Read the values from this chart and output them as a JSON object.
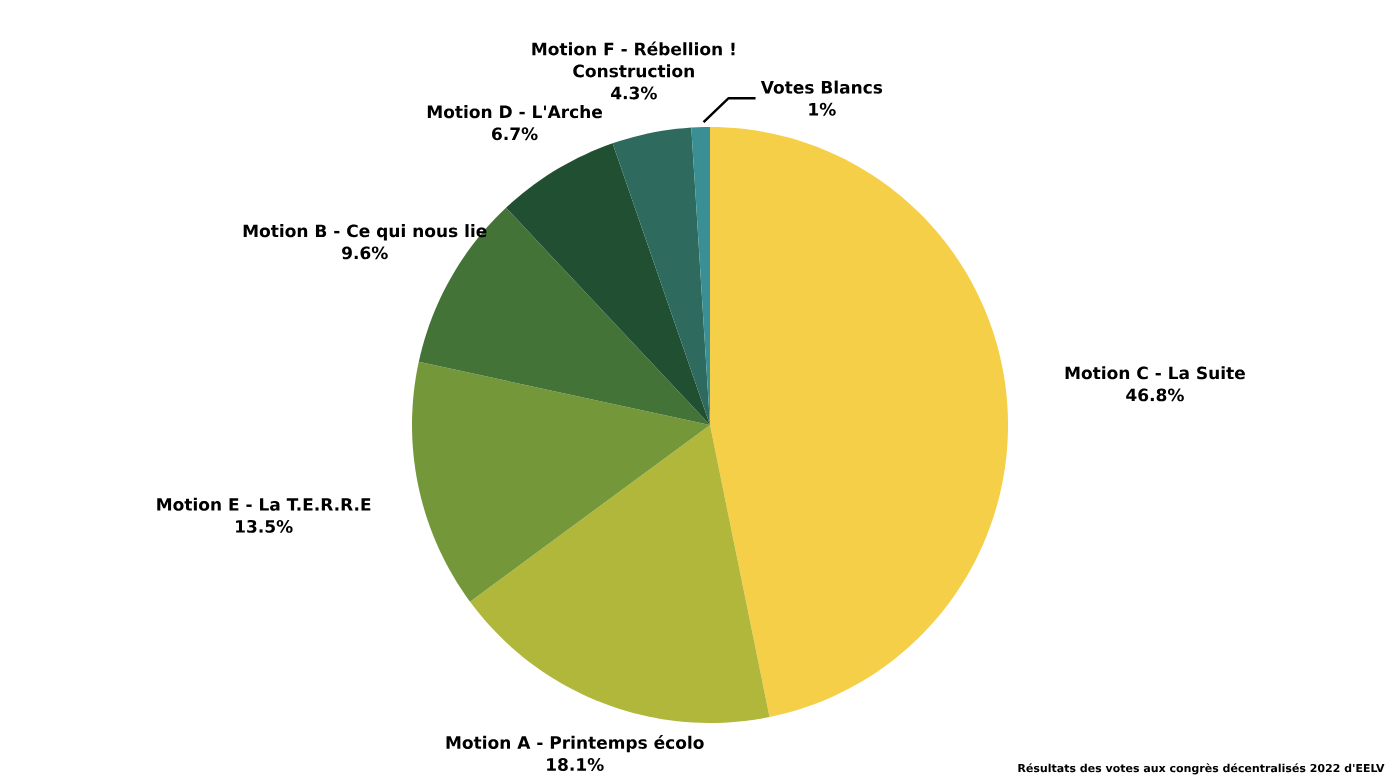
{
  "chart_data": {
    "type": "pie",
    "categories": [
      "Motion C - La Suite",
      "Motion A - Printemps écolo",
      "Motion E - La T.E.R.R.E",
      "Motion B - Ce qui nous lie",
      "Motion D - L'Arche",
      "Motion F - Rébellion ! Construction",
      "Votes Blancs"
    ],
    "values": [
      46.8,
      18.1,
      13.5,
      9.6,
      6.7,
      4.3,
      1
    ],
    "value_labels": [
      "46.8%",
      "18.1%",
      "13.5%",
      "9.6%",
      "6.7%",
      "4.3%",
      "1%"
    ],
    "colors": [
      "#f5cf47",
      "#b0b73b",
      "#739739",
      "#437337",
      "#214f31",
      "#2e6b5e",
      "#3a8f94"
    ],
    "annotations": [
      "Résultats des votes aux congrès décentralisés 2022 d'EELV"
    ]
  }
}
